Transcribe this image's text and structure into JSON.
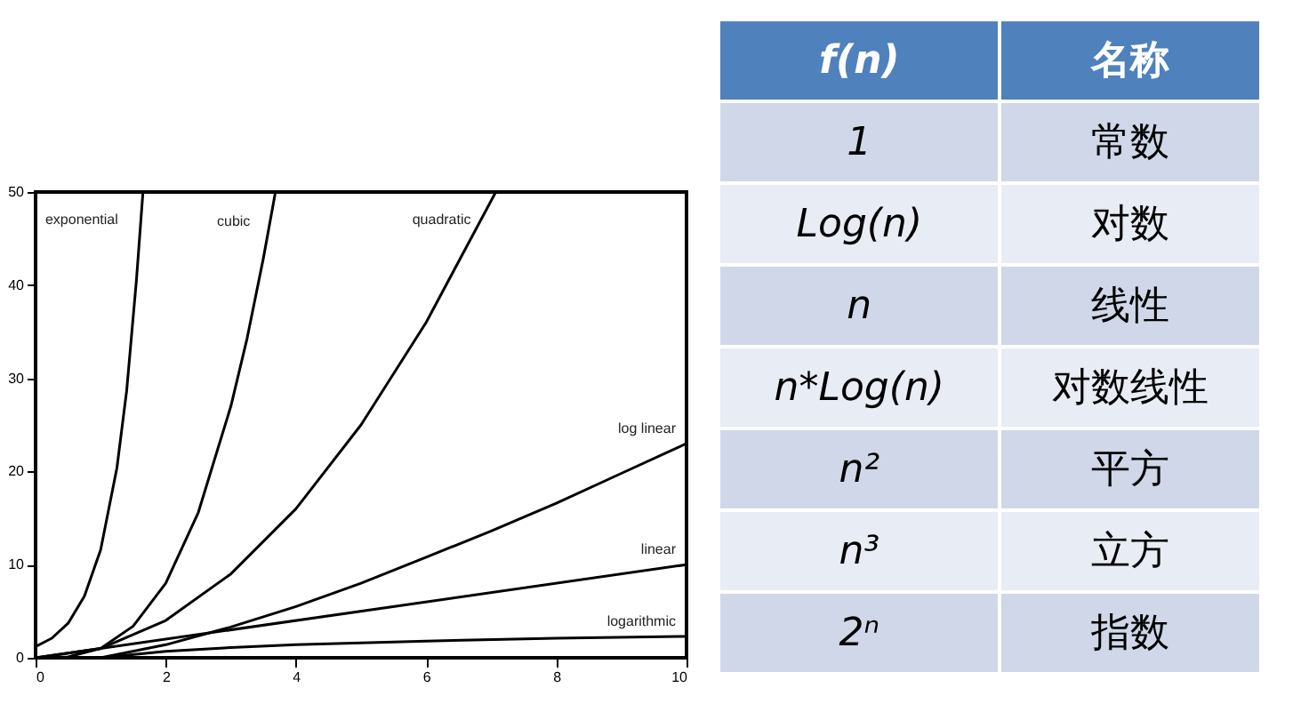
{
  "chart_data": [
    {
      "type": "line",
      "xlim": [
        0,
        10
      ],
      "ylim": [
        0,
        50
      ],
      "xticks": [
        0,
        2,
        4,
        6,
        8,
        10
      ],
      "yticks": [
        0,
        10,
        20,
        30,
        40,
        50
      ],
      "grid": false,
      "legend": false,
      "series": [
        {
          "name": "exponential",
          "color": "#000000",
          "x": [
            0,
            0.25,
            0.5,
            0.75,
            1,
            1.25,
            1.4,
            1.55,
            1.65
          ],
          "values": [
            1.2,
            2.1,
            3.7,
            6.6,
            11.6,
            20.4,
            28.7,
            40.6,
            50
          ]
        },
        {
          "name": "cubic",
          "color": "#000000",
          "x": [
            0,
            0.5,
            1,
            1.5,
            2,
            2.5,
            3,
            3.25,
            3.5,
            3.68
          ],
          "values": [
            0,
            0.1,
            1,
            3.4,
            8,
            15.6,
            27,
            34.3,
            42.9,
            49.8
          ]
        },
        {
          "name": "quadratic",
          "color": "#000000",
          "x": [
            0,
            1,
            2,
            3,
            4,
            5,
            6,
            7.07
          ],
          "values": [
            0,
            1,
            4,
            9,
            16,
            25,
            36,
            50
          ]
        },
        {
          "name": "log linear",
          "color": "#000000",
          "x": [
            1,
            2,
            3,
            4,
            5,
            6,
            7,
            8,
            9,
            10
          ],
          "values": [
            0,
            1.4,
            3.3,
            5.5,
            8,
            10.8,
            13.6,
            16.6,
            19.8,
            23
          ]
        },
        {
          "name": "linear",
          "color": "#000000",
          "x": [
            0,
            10
          ],
          "values": [
            0,
            10
          ]
        },
        {
          "name": "logarithmic",
          "color": "#000000",
          "x": [
            1,
            2,
            3,
            4,
            6,
            8,
            10
          ],
          "values": [
            0,
            0.7,
            1.1,
            1.4,
            1.8,
            2.1,
            2.3
          ]
        }
      ]
    },
    {
      "type": "other",
      "categories": [
        "f(n)",
        "名称"
      ],
      "cell_labels": [
        [
          "1",
          "常数"
        ],
        [
          "Log(n)",
          "对数"
        ],
        [
          "n",
          "线性"
        ],
        [
          "n*Log(n)",
          "对数线性"
        ],
        [
          "n²",
          "平方"
        ],
        [
          "n³",
          "立方"
        ],
        [
          "2ⁿ",
          "指数"
        ]
      ]
    }
  ]
}
